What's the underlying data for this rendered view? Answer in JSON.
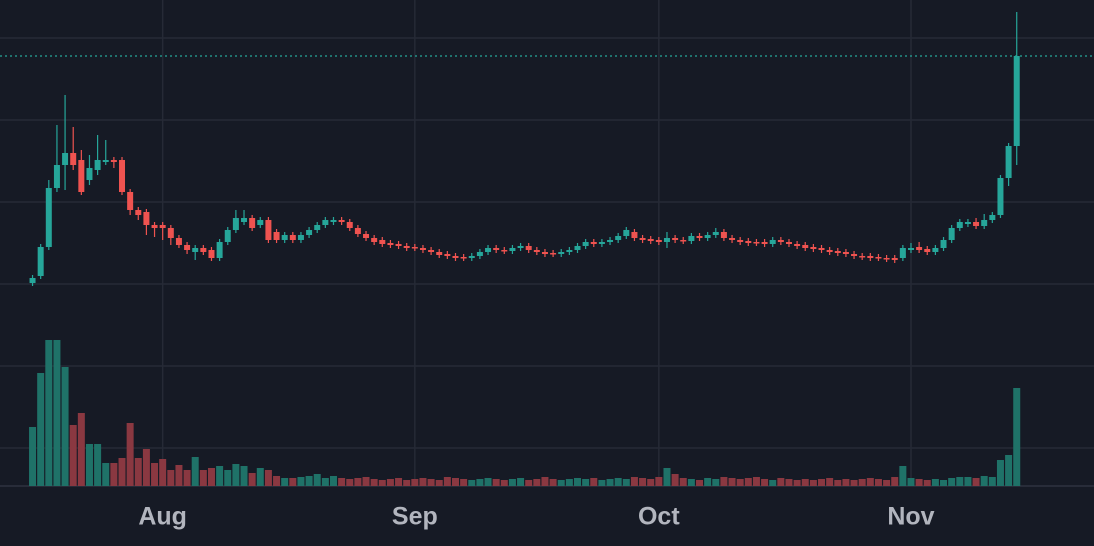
{
  "chart_data": {
    "type": "candlestick",
    "candles": [
      [
        203,
        211,
        200,
        208
      ],
      [
        210,
        242,
        207,
        239
      ],
      [
        239,
        306,
        236,
        298
      ],
      [
        298,
        361,
        294,
        321
      ],
      [
        321,
        391,
        296,
        333
      ],
      [
        333,
        359,
        316,
        321
      ],
      [
        326,
        336,
        291,
        294
      ],
      [
        306,
        331,
        301,
        318
      ],
      [
        316,
        351,
        311,
        326
      ],
      [
        324,
        346,
        321,
        326
      ],
      [
        326,
        329,
        318,
        324
      ],
      [
        326,
        329,
        291,
        294
      ],
      [
        294,
        297,
        271,
        276
      ],
      [
        276,
        279,
        266,
        271
      ],
      [
        274,
        277,
        251,
        261
      ],
      [
        261,
        264,
        249,
        258
      ],
      [
        261,
        264,
        246,
        258
      ],
      [
        258,
        261,
        241,
        248
      ],
      [
        248,
        251,
        238,
        241
      ],
      [
        241,
        244,
        232,
        236
      ],
      [
        234,
        241,
        226,
        238
      ],
      [
        238,
        241,
        231,
        234
      ],
      [
        236,
        239,
        225,
        228
      ],
      [
        228,
        247,
        225,
        244
      ],
      [
        244,
        259,
        241,
        256
      ],
      [
        256,
        276,
        253,
        268
      ],
      [
        264,
        276,
        261,
        268
      ],
      [
        268,
        271,
        255,
        258
      ],
      [
        261,
        269,
        258,
        266
      ],
      [
        266,
        269,
        243,
        246
      ],
      [
        254,
        257,
        243,
        246
      ],
      [
        246,
        254,
        243,
        251
      ],
      [
        251,
        254,
        243,
        246
      ],
      [
        246,
        254,
        243,
        251
      ],
      [
        251,
        259,
        248,
        256
      ],
      [
        256,
        264,
        253,
        261
      ],
      [
        261,
        269,
        258,
        266
      ],
      [
        264,
        269,
        261,
        266
      ],
      [
        266,
        269,
        261,
        264
      ],
      [
        264,
        267,
        255,
        258
      ],
      [
        258,
        261,
        249,
        252
      ],
      [
        252,
        255,
        245,
        248
      ],
      [
        248,
        251,
        241,
        244
      ],
      [
        246,
        249,
        239,
        242
      ],
      [
        243,
        246,
        238,
        241
      ],
      [
        242,
        245,
        237,
        240
      ],
      [
        240,
        243,
        235,
        238
      ],
      [
        239,
        242,
        235,
        238
      ],
      [
        238,
        241,
        233,
        236
      ],
      [
        236,
        239,
        231,
        234
      ],
      [
        234,
        237,
        228,
        231
      ],
      [
        232,
        235,
        227,
        230
      ],
      [
        230,
        233,
        225,
        228
      ],
      [
        229,
        232,
        225,
        228
      ],
      [
        228,
        233,
        225,
        230
      ],
      [
        230,
        237,
        227,
        234
      ],
      [
        234,
        241,
        231,
        238
      ],
      [
        238,
        241,
        233,
        236
      ],
      [
        236,
        239,
        232,
        235
      ],
      [
        235,
        241,
        232,
        238
      ],
      [
        238,
        243,
        235,
        240
      ],
      [
        240,
        243,
        233,
        236
      ],
      [
        236,
        239,
        231,
        234
      ],
      [
        234,
        237,
        229,
        232
      ],
      [
        233,
        236,
        229,
        232
      ],
      [
        232,
        237,
        229,
        234
      ],
      [
        234,
        239,
        231,
        236
      ],
      [
        236,
        243,
        233,
        240
      ],
      [
        240,
        247,
        237,
        244
      ],
      [
        244,
        247,
        239,
        242
      ],
      [
        242,
        247,
        239,
        244
      ],
      [
        244,
        249,
        241,
        246
      ],
      [
        246,
        253,
        243,
        250
      ],
      [
        250,
        259,
        247,
        256
      ],
      [
        254,
        257,
        245,
        248
      ],
      [
        248,
        251,
        243,
        246
      ],
      [
        247,
        250,
        242,
        245
      ],
      [
        246,
        249,
        241,
        244
      ],
      [
        244,
        254,
        238,
        248
      ],
      [
        248,
        251,
        243,
        246
      ],
      [
        246,
        249,
        242,
        245
      ],
      [
        245,
        253,
        242,
        250
      ],
      [
        250,
        253,
        245,
        248
      ],
      [
        248,
        254,
        245,
        251
      ],
      [
        251,
        258,
        248,
        254
      ],
      [
        254,
        257,
        245,
        248
      ],
      [
        248,
        251,
        243,
        246
      ],
      [
        246,
        249,
        241,
        244
      ],
      [
        245,
        248,
        240,
        243
      ],
      [
        244,
        247,
        240,
        243
      ],
      [
        244,
        247,
        239,
        242
      ],
      [
        242,
        249,
        239,
        246
      ],
      [
        246,
        249,
        241,
        244
      ],
      [
        244,
        247,
        239,
        242
      ],
      [
        242,
        245,
        237,
        240
      ],
      [
        241,
        244,
        235,
        238
      ],
      [
        239,
        242,
        234,
        237
      ],
      [
        238,
        241,
        233,
        236
      ],
      [
        236,
        239,
        231,
        234
      ],
      [
        235,
        238,
        230,
        233
      ],
      [
        234,
        237,
        229,
        232
      ],
      [
        232,
        235,
        227,
        230
      ],
      [
        230,
        233,
        226,
        229
      ],
      [
        230,
        233,
        225,
        228
      ],
      [
        229,
        232,
        225,
        228
      ],
      [
        228,
        231,
        224,
        227
      ],
      [
        228,
        231,
        223,
        226
      ],
      [
        228,
        241,
        225,
        238
      ],
      [
        236,
        243,
        233,
        238
      ],
      [
        239,
        244,
        233,
        236
      ],
      [
        237,
        240,
        231,
        234
      ],
      [
        234,
        241,
        231,
        238
      ],
      [
        238,
        249,
        235,
        246
      ],
      [
        246,
        261,
        243,
        258
      ],
      [
        258,
        267,
        255,
        264
      ],
      [
        262,
        267,
        259,
        264
      ],
      [
        264,
        268,
        257,
        260
      ],
      [
        260,
        272,
        257,
        266
      ],
      [
        266,
        274,
        263,
        271
      ],
      [
        271,
        311,
        268,
        308
      ],
      [
        308,
        343,
        300,
        340
      ],
      [
        340,
        474,
        321,
        430
      ]
    ],
    "volume": [
      59,
      113,
      146,
      146,
      119,
      61,
      73,
      42,
      42,
      23,
      23,
      28,
      63,
      28,
      37,
      23,
      27,
      16,
      21,
      16,
      29,
      16,
      18,
      20,
      16,
      22,
      20,
      13,
      18,
      16,
      10,
      8,
      8,
      9,
      10,
      12,
      8,
      10,
      8,
      7,
      8,
      9,
      7,
      6,
      7,
      8,
      6,
      7,
      8,
      7,
      6,
      9,
      8,
      7,
      6,
      7,
      8,
      7,
      6,
      7,
      8,
      6,
      7,
      9,
      7,
      6,
      7,
      8,
      7,
      8,
      6,
      7,
      8,
      7,
      9,
      8,
      7,
      9,
      18,
      12,
      8,
      7,
      6,
      8,
      7,
      9,
      8,
      7,
      8,
      9,
      7,
      6,
      8,
      7,
      6,
      7,
      6,
      7,
      8,
      6,
      7,
      6,
      7,
      8,
      7,
      6,
      9,
      20,
      8,
      7,
      6,
      7,
      6,
      8,
      9,
      9,
      8,
      10,
      9,
      26,
      31,
      98
    ],
    "xlim": [
      -4,
      130.5
    ],
    "xticks": [
      {
        "value": 16,
        "label": "Aug"
      },
      {
        "value": 47,
        "label": "Sep"
      },
      {
        "value": 77,
        "label": "Oct"
      },
      {
        "value": 108,
        "label": "Nov"
      }
    ],
    "ylim": [
      0,
      486
    ],
    "yticks": [
      38,
      120,
      202,
      284,
      366,
      448
    ],
    "y2lim": [
      0,
      486
    ],
    "up_color": "#26a69a",
    "down_color": "#ef5350",
    "volume_up_color": "#1f7268",
    "volume_down_color": "#8a3841",
    "grid": true
  }
}
